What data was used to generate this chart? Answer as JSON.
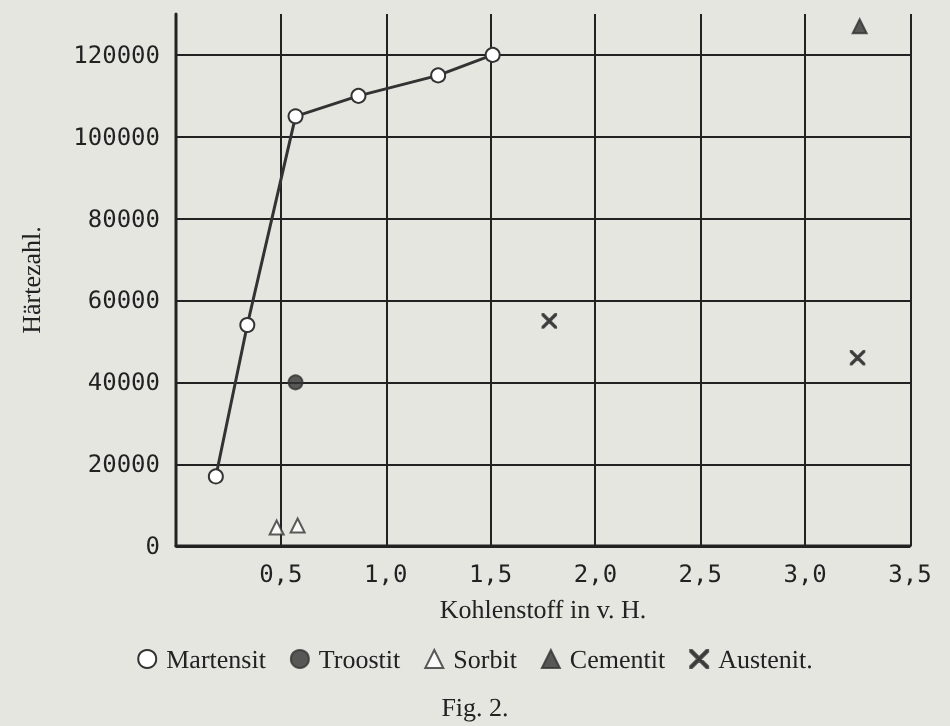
{
  "chart_data": {
    "type": "scatter",
    "xlabel": "Kohlenstoff in v. H.",
    "ylabel": "Härtezahl.",
    "annotations": [
      "Fig. 2."
    ],
    "xlim": [
      0,
      3.5
    ],
    "xticks": [
      {
        "value": 0.5,
        "label": "0,5"
      },
      {
        "value": 1.0,
        "label": "1,0"
      },
      {
        "value": 1.5,
        "label": "1,5"
      },
      {
        "value": 2.0,
        "label": "2,0"
      },
      {
        "value": 2.5,
        "label": "2,5"
      },
      {
        "value": 3.0,
        "label": "3,0"
      },
      {
        "value": 3.5,
        "label": "3,5"
      }
    ],
    "ylim": [
      0,
      130000
    ],
    "yticks": [
      0,
      20000,
      40000,
      60000,
      80000,
      100000,
      120000
    ],
    "grid": true,
    "legend": "bottom",
    "series": [
      {
        "name": "Martensit",
        "type": "line",
        "marker": "circle",
        "color": "#333333",
        "x": [
          0.19,
          0.34,
          0.57,
          0.87,
          1.25,
          1.51
        ],
        "values": [
          17000,
          54000,
          105000,
          110000,
          115000,
          120000
        ]
      },
      {
        "name": "Troostit",
        "marker": "circle",
        "color": "#333333",
        "x": [
          0.57
        ],
        "values": [
          40000
        ]
      },
      {
        "name": "Sorbit",
        "marker": "triangle",
        "color": "#333333",
        "x": [
          0.48,
          0.58
        ],
        "values": [
          4500,
          5000
        ]
      },
      {
        "name": "Cementit",
        "marker": "triangle",
        "color": "#333333",
        "x": [
          3.26
        ],
        "values": [
          127000
        ]
      },
      {
        "name": "Austenit.",
        "marker": "cross",
        "color": "#333333",
        "x": [
          1.78,
          3.25
        ],
        "values": [
          55000,
          46000
        ]
      }
    ]
  }
}
